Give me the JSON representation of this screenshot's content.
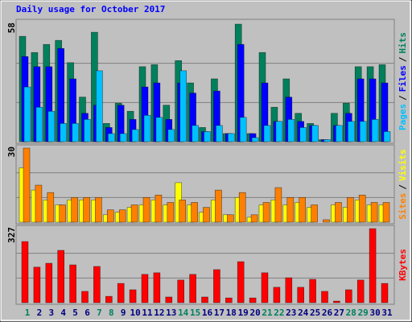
{
  "chart_data": [
    {
      "type": "bar",
      "title": "Daily usage for October 2017",
      "ylim": [
        0,
        58
      ],
      "yticks": [
        58
      ],
      "grid": true,
      "legend_separator": "/",
      "series": [
        {
          "name": "Hits",
          "color": "#00805c",
          "values": [
            52,
            44,
            48,
            50,
            39,
            22,
            54,
            9,
            19,
            15,
            37,
            38,
            18,
            40,
            29,
            7,
            31,
            4,
            58,
            4,
            44,
            17,
            31,
            14,
            9,
            1,
            14,
            19,
            37,
            37,
            38
          ]
        },
        {
          "name": "Files",
          "color": "#0000ff",
          "values": [
            42,
            37,
            37,
            46,
            31,
            14,
            18,
            7,
            18,
            11,
            27,
            29,
            11,
            29,
            24,
            5,
            25,
            4,
            48,
            4,
            29,
            10,
            22,
            10,
            8,
            1,
            8,
            14,
            31,
            31,
            29
          ]
        },
        {
          "name": "Pages",
          "color": "#00c0ff",
          "values": [
            27,
            17,
            15,
            9,
            9,
            11,
            35,
            4,
            4,
            6,
            13,
            12,
            6,
            35,
            8,
            5,
            8,
            4,
            12,
            2,
            8,
            10,
            11,
            7,
            8,
            1,
            8,
            10,
            10,
            11,
            5
          ]
        }
      ]
    },
    {
      "type": "bar",
      "ylim": [
        0,
        30
      ],
      "yticks": [
        30
      ],
      "grid": true,
      "legend_separator": "/",
      "series": [
        {
          "name": "Visits",
          "color": "#ffff00",
          "values": [
            22,
            13,
            9,
            7,
            9,
            9,
            9,
            3,
            4,
            6,
            7,
            9,
            7,
            16,
            7,
            4,
            9,
            3,
            10,
            2,
            7,
            9,
            7,
            8,
            6,
            0,
            7,
            6,
            9,
            7,
            7
          ]
        },
        {
          "name": "Sites",
          "color": "#ff8000",
          "values": [
            30,
            15,
            12,
            7,
            10,
            10,
            10,
            5,
            5,
            7,
            10,
            11,
            8,
            9,
            8,
            6,
            13,
            3,
            12,
            3,
            8,
            14,
            10,
            10,
            7,
            1,
            8,
            10,
            11,
            8,
            8
          ]
        }
      ]
    },
    {
      "type": "bar",
      "ylim": [
        0,
        327
      ],
      "yticks": [
        327
      ],
      "grid": true,
      "categories": [
        "1",
        "2",
        "3",
        "4",
        "5",
        "6",
        "7",
        "8",
        "9",
        "10",
        "11",
        "12",
        "13",
        "14",
        "15",
        "16",
        "17",
        "18",
        "19",
        "20",
        "21",
        "22",
        "23",
        "24",
        "25",
        "26",
        "27",
        "28",
        "29",
        "30",
        "31"
      ],
      "highlight_categories": [
        "1",
        "7",
        "8",
        "14",
        "15",
        "21",
        "22",
        "28",
        "29"
      ],
      "highlight_color": "#008060",
      "category_color": "#000080",
      "series": [
        {
          "name": "KBytes",
          "color": "#ff0000",
          "values": [
            270,
            157,
            174,
            231,
            167,
            50,
            160,
            28,
            85,
            57,
            125,
            132,
            25,
            100,
            125,
            25,
            146,
            21,
            181,
            21,
            132,
            68,
            110,
            68,
            103,
            50,
            7,
            57,
            100,
            327,
            85
          ]
        }
      ]
    }
  ]
}
